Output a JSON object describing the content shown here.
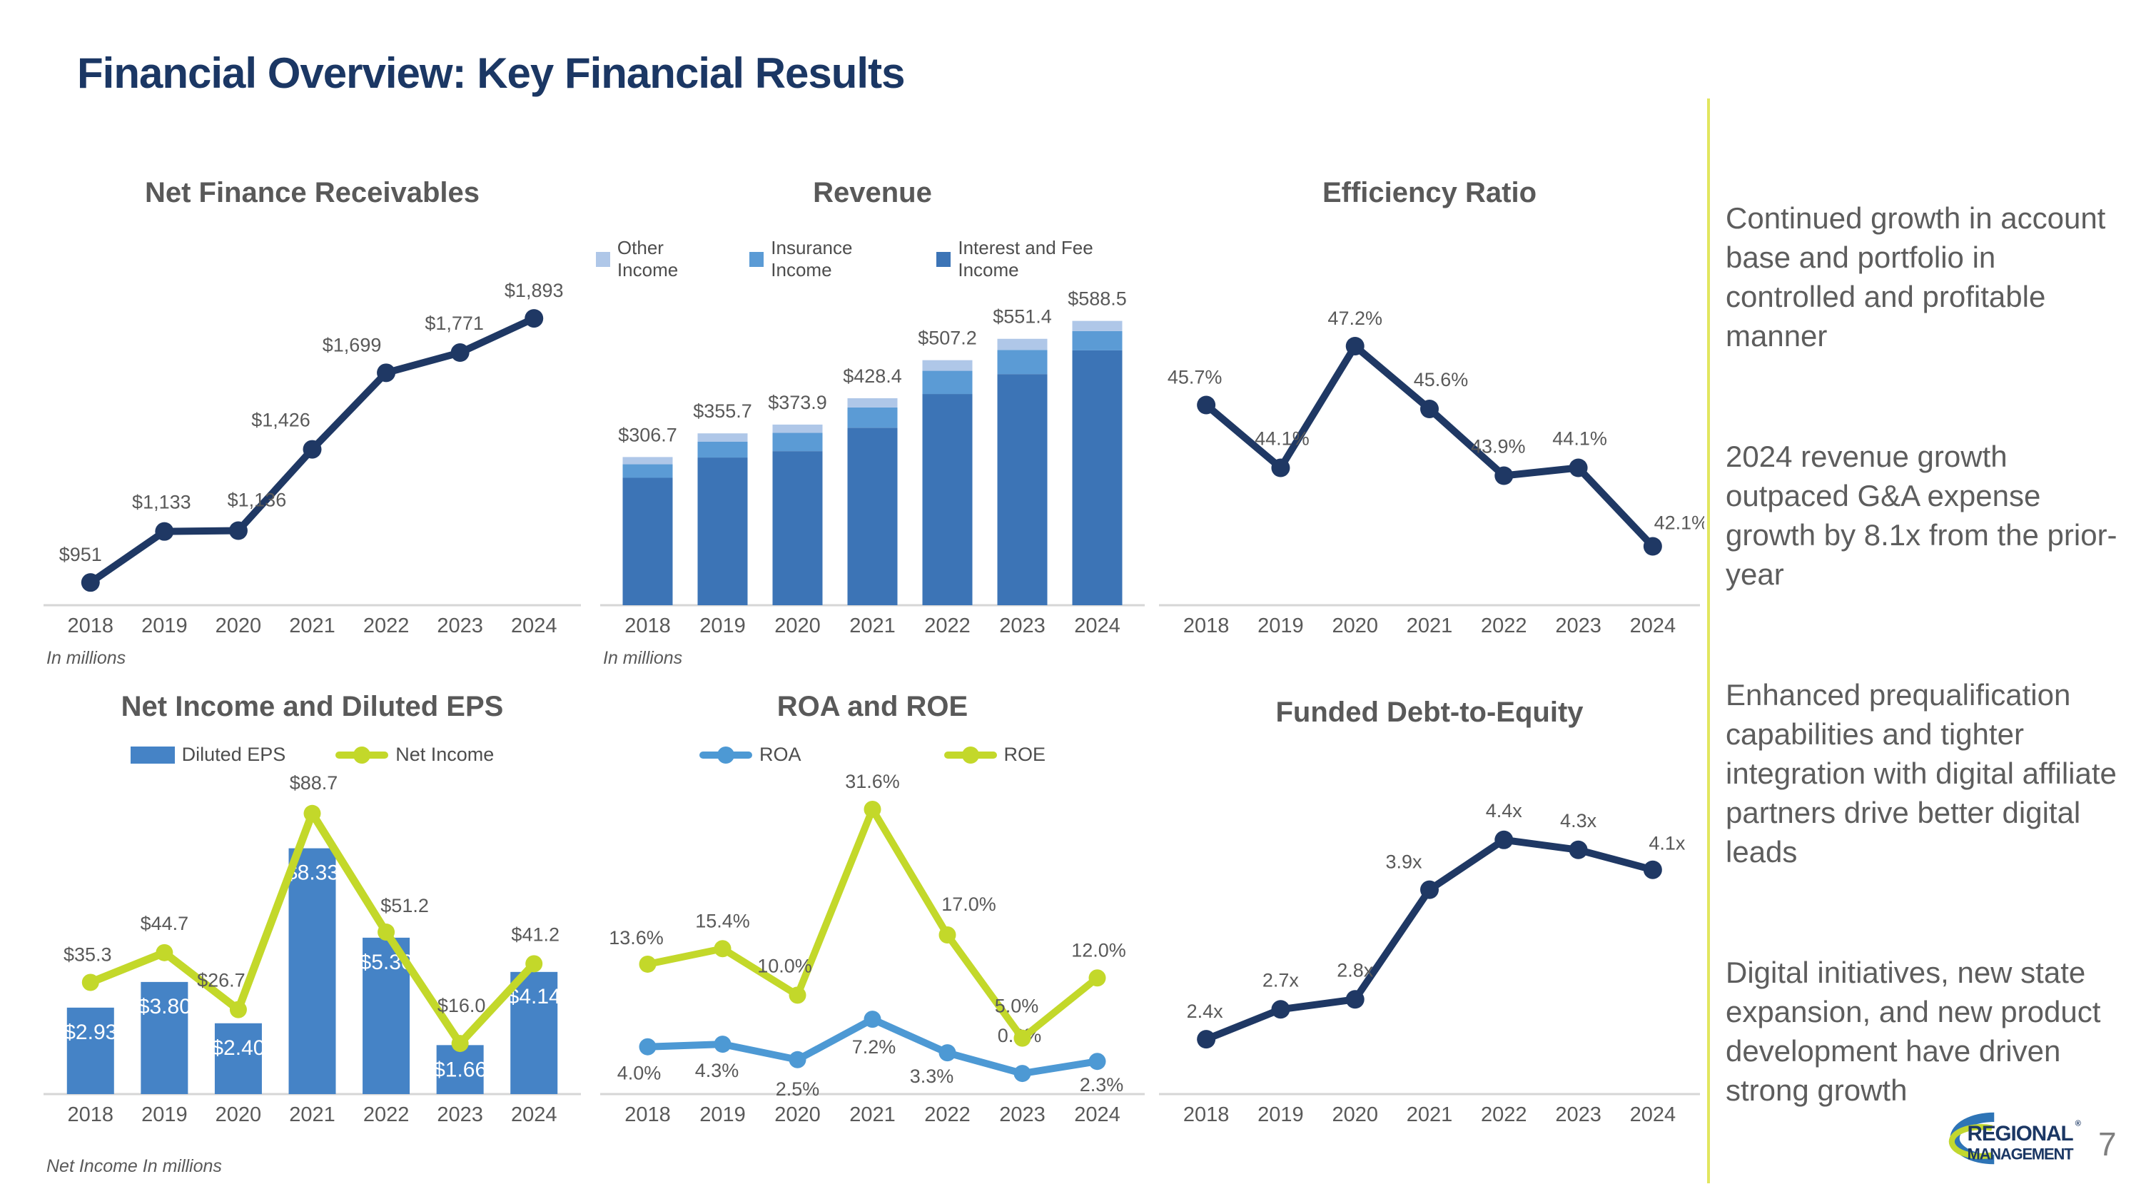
{
  "slide": {
    "title": "Financial Overview: Key Financial Results",
    "page_number": "7",
    "logo": {
      "line1": "REGIONAL",
      "line2": "MANAGEMENT",
      "registered": "®"
    }
  },
  "colors": {
    "navy": "#1F3864",
    "navy_title": "#1B3764",
    "gray_title": "#595959",
    "label_gray": "#595959",
    "axis_gray": "#D6D6D6",
    "bar_blue": "#4583C6",
    "interest_blue": "#3C74B6",
    "insurance_blue": "#5B9BD5",
    "other_blue": "#AFC7E8",
    "lime": "#C3D82A",
    "roa_blue": "#4D99D4",
    "divider": "#E2E65F",
    "logo_blue": "#2E74B6",
    "logo_green": "#C1D72F"
  },
  "sidebar": {
    "paragraphs": [
      "Continued growth in account base and portfolio in controlled and profitable manner",
      "2024 revenue growth outpaced G&A expense growth by 8.1x from the prior-year",
      "Enhanced prequalification capabilities and tighter integration with digital affiliate partners drive better digital leads",
      "Digital initiatives, new state expansion, and new product development have driven strong growth"
    ]
  },
  "chart_data": [
    {
      "type": "line",
      "title": "Net Finance Receivables",
      "categories": [
        "2018",
        "2019",
        "2020",
        "2021",
        "2022",
        "2023",
        "2024"
      ],
      "values": [
        951,
        1133,
        1136,
        1426,
        1699,
        1771,
        1893
      ],
      "labels": [
        "$951",
        "$1,133",
        "$1,136",
        "$1,426",
        "$1,699",
        "$1,771",
        "$1,893"
      ],
      "footnote": "In millions",
      "ylim": [
        870,
        1990
      ],
      "xlabel": "",
      "ylabel": "",
      "grid": false,
      "legend_position": "none"
    },
    {
      "type": "bar",
      "title": "Revenue",
      "categories": [
        "2018",
        "2019",
        "2020",
        "2021",
        "2022",
        "2023",
        "2024"
      ],
      "series": [
        {
          "name": "Other Income",
          "color_key": "other_blue",
          "values": [
            15,
            17,
            17,
            19,
            22,
            23,
            21
          ]
        },
        {
          "name": "Insurance Income",
          "color_key": "insurance_blue",
          "values": [
            28,
            33,
            38,
            42,
            48,
            50,
            40
          ]
        },
        {
          "name": "Interest and Fee Income",
          "color_key": "interest_blue",
          "values": [
            263.7,
            305.7,
            318.9,
            367.4,
            437.2,
            478.4,
            527.5
          ]
        }
      ],
      "totals": [
        306.7,
        355.7,
        373.9,
        428.4,
        507.2,
        551.4,
        588.5
      ],
      "totals_labels": [
        "$306.7",
        "$355.7",
        "$373.9",
        "$428.4",
        "$507.2",
        "$551.4",
        "$588.5"
      ],
      "footnote": "In millions",
      "ylim": [
        0,
        650
      ],
      "grid": false,
      "legend_position": "top",
      "stacked": true
    },
    {
      "type": "line",
      "title": "Efficiency Ratio",
      "categories": [
        "2018",
        "2019",
        "2020",
        "2021",
        "2022",
        "2023",
        "2024"
      ],
      "values": [
        45.7,
        44.1,
        47.2,
        45.6,
        43.9,
        44.1,
        42.1
      ],
      "labels": [
        "45.7%",
        "44.1%",
        "47.2%",
        "45.6%",
        "43.9%",
        "44.1%",
        "42.1%"
      ],
      "ylim": [
        40.6,
        48.6
      ],
      "grid": false,
      "legend_position": "none"
    },
    {
      "type": "bar",
      "title": "Net Income and Diluted EPS",
      "categories": [
        "2018",
        "2019",
        "2020",
        "2021",
        "2022",
        "2023",
        "2024"
      ],
      "bars": {
        "name": "Diluted EPS",
        "values": [
          2.93,
          3.8,
          2.4,
          8.33,
          5.3,
          1.66,
          4.14
        ],
        "labels": [
          "$2.93",
          "$3.80",
          "$2.40",
          "$8.33",
          "$5.30",
          "$1.66",
          "$4.14"
        ]
      },
      "line": {
        "name": "Net Income",
        "values": [
          35.3,
          44.7,
          26.7,
          88.7,
          51.2,
          16.0,
          41.2
        ],
        "labels": [
          "$35.3",
          "$44.7",
          "$26.7",
          "$88.7",
          "$51.2",
          "$16.0",
          "$41.2"
        ]
      },
      "footnote": "Net Income In millions",
      "bar_ylim": [
        0,
        10.4
      ],
      "line_ylim": [
        0,
        97
      ],
      "grid": false,
      "legend_position": "top",
      "combo": true
    },
    {
      "type": "line",
      "title": "ROA and ROE",
      "categories": [
        "2018",
        "2019",
        "2020",
        "2021",
        "2022",
        "2023",
        "2024"
      ],
      "series": [
        {
          "name": "ROA",
          "color_key": "roa_blue",
          "values": [
            4.0,
            4.3,
            2.5,
            7.2,
            3.3,
            0.9,
            2.3
          ],
          "labels": [
            "4.0%",
            "4.3%",
            "2.5%",
            "7.2%",
            "3.3%",
            "0.9%",
            "2.3%"
          ]
        },
        {
          "name": "ROE",
          "color_key": "lime",
          "values": [
            13.6,
            15.4,
            10.0,
            31.6,
            17.0,
            5.0,
            12.0
          ],
          "labels": [
            "13.6%",
            "15.4%",
            "10.0%",
            "31.6%",
            "17.0%",
            "5.0%",
            "12.0%"
          ]
        }
      ],
      "ylim": [
        -1.5,
        35
      ],
      "grid": false,
      "legend_position": "top"
    },
    {
      "type": "line",
      "title": "Funded Debt-to-Equity",
      "categories": [
        "2018",
        "2019",
        "2020",
        "2021",
        "2022",
        "2023",
        "2024"
      ],
      "values": [
        2.4,
        2.7,
        2.8,
        3.9,
        4.4,
        4.3,
        4.1
      ],
      "labels": [
        "2.4x",
        "2.7x",
        "2.8x",
        "3.9x",
        "4.4x",
        "4.3x",
        "4.1x"
      ],
      "ylim": [
        1.85,
        5.0
      ],
      "grid": false,
      "legend_position": "none"
    }
  ]
}
